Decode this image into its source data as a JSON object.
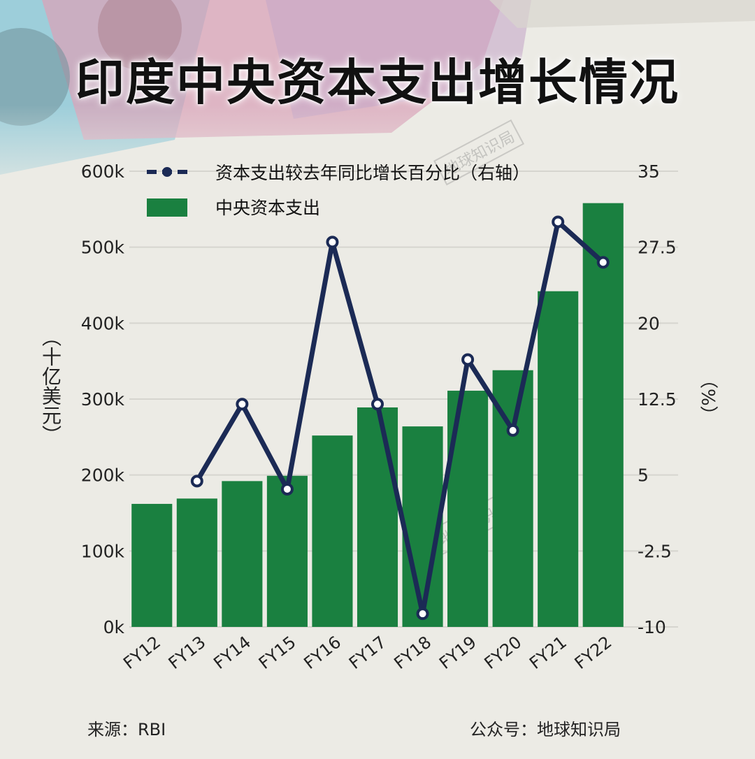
{
  "title": "印度中央资本支出增长情况",
  "footer": {
    "source": "来源：RBI",
    "account": "公众号：地球知识局"
  },
  "watermark": "地球知识局",
  "colors": {
    "bar": "#1a8040",
    "line": "#1b2a55",
    "grid": "#d6d5cf",
    "background": "#ecebe5"
  },
  "y_left_title": "（十亿美元）",
  "y_right_title": "（%）",
  "chart_data": {
    "type": "bar",
    "categories": [
      "FY12",
      "FY13",
      "FY14",
      "FY15",
      "FY16",
      "FY17",
      "FY18",
      "FY19",
      "FY20",
      "FY21",
      "FY22"
    ],
    "series": [
      {
        "name": "中央资本支出",
        "type": "bar",
        "axis": "left",
        "values": [
          162000,
          169000,
          192000,
          199000,
          252000,
          289000,
          264000,
          311000,
          338000,
          442000,
          558000
        ]
      },
      {
        "name": "资本支出较去年同比增长百分比（右轴）",
        "type": "line",
        "axis": "right",
        "values": [
          null,
          4.4,
          12.0,
          3.6,
          28.0,
          12.0,
          -8.7,
          16.4,
          9.4,
          30.0,
          26.0
        ]
      }
    ],
    "y_left": {
      "min": 0,
      "max": 600000,
      "ticks": [
        0,
        100000,
        200000,
        300000,
        400000,
        500000,
        600000
      ],
      "tick_labels": [
        "0k",
        "100k",
        "200k",
        "300k",
        "400k",
        "500k",
        "600k"
      ]
    },
    "y_right": {
      "min": -10,
      "max": 35,
      "ticks": [
        -10,
        -2.5,
        5,
        12.5,
        20,
        27.5,
        35
      ],
      "tick_labels": [
        "-10",
        "-2.5",
        "5",
        "12.5",
        "20",
        "27.5",
        "35"
      ]
    },
    "grid": true,
    "legend_position": "top"
  }
}
